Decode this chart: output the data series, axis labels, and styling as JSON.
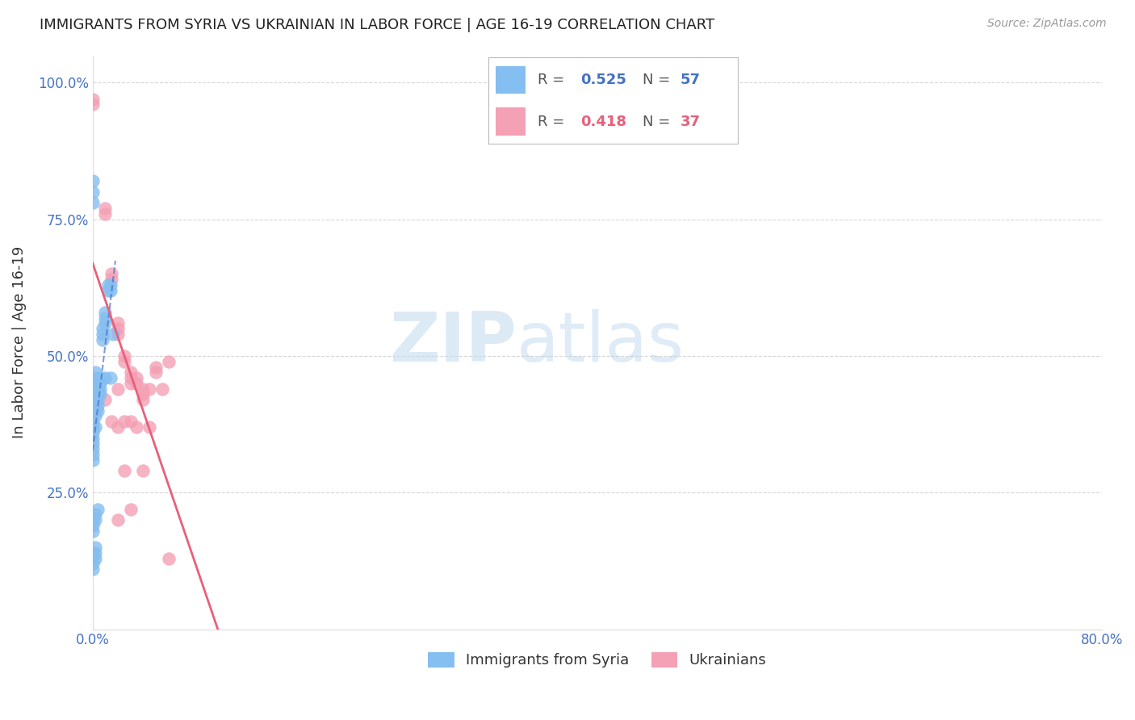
{
  "title": "IMMIGRANTS FROM SYRIA VS UKRAINIAN IN LABOR FORCE | AGE 16-19 CORRELATION CHART",
  "source": "Source: ZipAtlas.com",
  "ylabel": "In Labor Force | Age 16-19",
  "xlim": [
    0.0,
    0.8
  ],
  "ylim": [
    0.0,
    1.05
  ],
  "xticks": [
    0.0,
    0.1,
    0.2,
    0.3,
    0.4,
    0.5,
    0.6,
    0.7,
    0.8
  ],
  "xticklabels": [
    "0.0%",
    "",
    "",
    "",
    "",
    "",
    "",
    "",
    "80.0%"
  ],
  "yticks": [
    0.0,
    0.25,
    0.5,
    0.75,
    1.0
  ],
  "yticklabels": [
    "",
    "25.0%",
    "50.0%",
    "75.0%",
    "100.0%"
  ],
  "syria_color": "#85BEF0",
  "ukraine_color": "#F4A0B5",
  "syria_line_color": "#4472C4",
  "ukraine_line_color": "#E8607A",
  "watermark_zip": "ZIP",
  "watermark_atlas": "atlas",
  "syria_points_x": [
    0.0,
    0.0,
    0.0,
    0.0,
    0.0,
    0.0,
    0.0,
    0.0,
    0.002,
    0.002,
    0.002,
    0.002,
    0.002,
    0.002,
    0.004,
    0.004,
    0.004,
    0.004,
    0.004,
    0.006,
    0.006,
    0.006,
    0.006,
    0.008,
    0.008,
    0.008,
    0.01,
    0.01,
    0.01,
    0.012,
    0.012,
    0.014,
    0.014,
    0.016,
    0.0,
    0.0,
    0.0,
    0.002,
    0.002,
    0.004,
    0.0,
    0.0,
    0.002,
    0.002,
    0.0,
    0.002,
    0.006,
    0.01,
    0.014,
    0.0,
    0.0,
    0.0,
    0.0,
    0.002,
    0.002,
    0.002
  ],
  "syria_points_y": [
    0.38,
    0.37,
    0.36,
    0.35,
    0.34,
    0.33,
    0.32,
    0.31,
    0.43,
    0.42,
    0.41,
    0.4,
    0.39,
    0.37,
    0.44,
    0.43,
    0.42,
    0.41,
    0.4,
    0.46,
    0.45,
    0.44,
    0.43,
    0.55,
    0.54,
    0.53,
    0.58,
    0.57,
    0.56,
    0.63,
    0.62,
    0.63,
    0.62,
    0.54,
    0.2,
    0.19,
    0.18,
    0.21,
    0.2,
    0.22,
    0.82,
    0.8,
    0.46,
    0.45,
    0.78,
    0.47,
    0.46,
    0.46,
    0.46,
    0.14,
    0.13,
    0.12,
    0.11,
    0.15,
    0.14,
    0.13
  ],
  "ukraine_points_x": [
    0.0,
    0.0,
    0.01,
    0.01,
    0.015,
    0.015,
    0.02,
    0.02,
    0.02,
    0.025,
    0.025,
    0.03,
    0.03,
    0.03,
    0.035,
    0.035,
    0.04,
    0.04,
    0.04,
    0.045,
    0.05,
    0.05,
    0.055,
    0.06,
    0.01,
    0.02,
    0.03,
    0.015,
    0.025,
    0.035,
    0.02,
    0.045,
    0.025,
    0.04,
    0.03,
    0.02,
    0.06
  ],
  "ukraine_points_y": [
    0.97,
    0.96,
    0.77,
    0.76,
    0.65,
    0.64,
    0.56,
    0.55,
    0.54,
    0.5,
    0.49,
    0.47,
    0.46,
    0.45,
    0.46,
    0.45,
    0.44,
    0.43,
    0.42,
    0.44,
    0.48,
    0.47,
    0.44,
    0.49,
    0.42,
    0.44,
    0.38,
    0.38,
    0.38,
    0.37,
    0.37,
    0.37,
    0.29,
    0.29,
    0.22,
    0.2,
    0.13
  ],
  "background_color": "#FFFFFF",
  "grid_color": "#CCCCCC",
  "title_color": "#222222",
  "tick_label_color": "#4472C4"
}
